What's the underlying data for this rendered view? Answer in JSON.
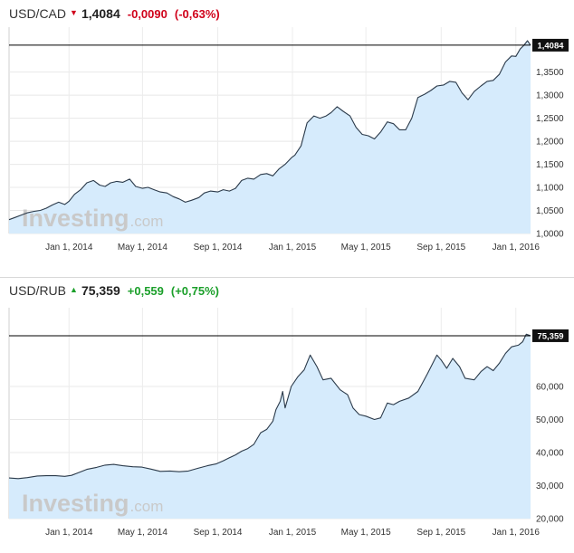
{
  "chart_data": [
    {
      "type": "area",
      "symbol": "USD/CAD",
      "last": "1,4084",
      "change": "-0,0090",
      "change_pct": "(-0,63%)",
      "direction": "down",
      "last_value": 1.4084,
      "last_label": "1,4084",
      "watermark": "Investing",
      "watermark_suffix": ".com",
      "ylim": [
        1.0,
        1.42
      ],
      "y_ticks": [
        {
          "value": 1.0,
          "label": "1,0000"
        },
        {
          "value": 1.05,
          "label": "1,0500"
        },
        {
          "value": 1.1,
          "label": "1,1000"
        },
        {
          "value": 1.15,
          "label": "1,1500"
        },
        {
          "value": 1.2,
          "label": "1,2000"
        },
        {
          "value": 1.25,
          "label": "1,2500"
        },
        {
          "value": 1.3,
          "label": "1,3000"
        },
        {
          "value": 1.35,
          "label": "1,3500"
        }
      ],
      "xlim": [
        "2013-09-25",
        "2016-01-25"
      ],
      "x_ticks": [
        {
          "date": "2014-01-01",
          "label": "Jan 1, 2014"
        },
        {
          "date": "2014-05-01",
          "label": "May 1, 2014"
        },
        {
          "date": "2014-09-01",
          "label": "Sep 1, 2014"
        },
        {
          "date": "2015-01-01",
          "label": "Jan 1, 2015"
        },
        {
          "date": "2015-05-01",
          "label": "May 1, 2015"
        },
        {
          "date": "2015-09-01",
          "label": "Sep 1, 2015"
        },
        {
          "date": "2016-01-01",
          "label": "Jan 1, 2016"
        }
      ],
      "series": [
        {
          "values": [
            [
              "2013-09-25",
              1.03
            ],
            [
              "2013-10-05",
              1.035
            ],
            [
              "2013-10-15",
              1.04
            ],
            [
              "2013-10-25",
              1.045
            ],
            [
              "2013-11-05",
              1.048
            ],
            [
              "2013-11-15",
              1.05
            ],
            [
              "2013-11-25",
              1.055
            ],
            [
              "2013-12-05",
              1.062
            ],
            [
              "2013-12-15",
              1.068
            ],
            [
              "2013-12-25",
              1.063
            ],
            [
              "2014-01-01",
              1.07
            ],
            [
              "2014-01-10",
              1.085
            ],
            [
              "2014-01-20",
              1.095
            ],
            [
              "2014-01-30",
              1.11
            ],
            [
              "2014-02-10",
              1.115
            ],
            [
              "2014-02-20",
              1.105
            ],
            [
              "2014-03-01",
              1.102
            ],
            [
              "2014-03-10",
              1.11
            ],
            [
              "2014-03-20",
              1.113
            ],
            [
              "2014-03-30",
              1.111
            ],
            [
              "2014-04-10",
              1.118
            ],
            [
              "2014-04-20",
              1.102
            ],
            [
              "2014-05-01",
              1.098
            ],
            [
              "2014-05-10",
              1.1
            ],
            [
              "2014-05-20",
              1.095
            ],
            [
              "2014-05-30",
              1.09
            ],
            [
              "2014-06-10",
              1.088
            ],
            [
              "2014-06-20",
              1.08
            ],
            [
              "2014-06-30",
              1.075
            ],
            [
              "2014-07-10",
              1.068
            ],
            [
              "2014-07-20",
              1.072
            ],
            [
              "2014-08-01",
              1.078
            ],
            [
              "2014-08-10",
              1.088
            ],
            [
              "2014-08-20",
              1.092
            ],
            [
              "2014-09-01",
              1.09
            ],
            [
              "2014-09-10",
              1.095
            ],
            [
              "2014-09-20",
              1.092
            ],
            [
              "2014-09-30",
              1.098
            ],
            [
              "2014-10-10",
              1.115
            ],
            [
              "2014-10-20",
              1.12
            ],
            [
              "2014-10-30",
              1.118
            ],
            [
              "2014-11-10",
              1.128
            ],
            [
              "2014-11-20",
              1.13
            ],
            [
              "2014-11-30",
              1.125
            ],
            [
              "2014-12-10",
              1.14
            ],
            [
              "2014-12-20",
              1.15
            ],
            [
              "2014-12-31",
              1.165
            ],
            [
              "2015-01-05",
              1.17
            ],
            [
              "2015-01-15",
              1.19
            ],
            [
              "2015-01-25",
              1.24
            ],
            [
              "2015-02-05",
              1.255
            ],
            [
              "2015-02-15",
              1.25
            ],
            [
              "2015-02-25",
              1.255
            ],
            [
              "2015-03-05",
              1.262
            ],
            [
              "2015-03-15",
              1.275
            ],
            [
              "2015-03-25",
              1.265
            ],
            [
              "2015-04-05",
              1.255
            ],
            [
              "2015-04-15",
              1.23
            ],
            [
              "2015-04-25",
              1.215
            ],
            [
              "2015-05-05",
              1.212
            ],
            [
              "2015-05-15",
              1.205
            ],
            [
              "2015-05-25",
              1.22
            ],
            [
              "2015-06-05",
              1.242
            ],
            [
              "2015-06-15",
              1.238
            ],
            [
              "2015-06-25",
              1.225
            ],
            [
              "2015-07-05",
              1.225
            ],
            [
              "2015-07-15",
              1.25
            ],
            [
              "2015-07-25",
              1.295
            ],
            [
              "2015-08-05",
              1.302
            ],
            [
              "2015-08-15",
              1.31
            ],
            [
              "2015-08-25",
              1.32
            ],
            [
              "2015-09-05",
              1.322
            ],
            [
              "2015-09-15",
              1.33
            ],
            [
              "2015-09-25",
              1.328
            ],
            [
              "2015-10-05",
              1.305
            ],
            [
              "2015-10-15",
              1.29
            ],
            [
              "2015-10-25",
              1.308
            ],
            [
              "2015-11-05",
              1.32
            ],
            [
              "2015-11-15",
              1.33
            ],
            [
              "2015-11-25",
              1.332
            ],
            [
              "2015-12-05",
              1.345
            ],
            [
              "2015-12-15",
              1.372
            ],
            [
              "2015-12-25",
              1.385
            ],
            [
              "2016-01-01",
              1.384
            ],
            [
              "2016-01-08",
              1.4
            ],
            [
              "2016-01-14",
              1.408
            ],
            [
              "2016-01-20",
              1.418
            ],
            [
              "2016-01-25",
              1.4084
            ]
          ]
        }
      ],
      "grid": true
    },
    {
      "type": "area",
      "symbol": "USD/RUB",
      "last": "75,359",
      "change": "+0,559",
      "change_pct": "(+0,75%)",
      "direction": "up",
      "last_value": 75.359,
      "last_label": "75,359",
      "watermark": "Investing",
      "watermark_suffix": ".com",
      "ylim": [
        20,
        80
      ],
      "y_ticks": [
        {
          "value": 20,
          "label": "20,000"
        },
        {
          "value": 30,
          "label": "30,000"
        },
        {
          "value": 40,
          "label": "40,000"
        },
        {
          "value": 50,
          "label": "50,000"
        },
        {
          "value": 60,
          "label": "60,000"
        }
      ],
      "xlim": [
        "2013-09-25",
        "2016-01-25"
      ],
      "x_ticks": [
        {
          "date": "2014-01-01",
          "label": "Jan 1, 2014"
        },
        {
          "date": "2014-05-01",
          "label": "May 1, 2014"
        },
        {
          "date": "2014-09-01",
          "label": "Sep 1, 2014"
        },
        {
          "date": "2015-01-01",
          "label": "Jan 1, 2015"
        },
        {
          "date": "2015-05-01",
          "label": "May 1, 2015"
        },
        {
          "date": "2015-09-01",
          "label": "Sep 1, 2015"
        },
        {
          "date": "2016-01-01",
          "label": "Jan 1, 2016"
        }
      ],
      "series": [
        {
          "values": [
            [
              "2013-09-25",
              32.3
            ],
            [
              "2013-10-10",
              32.1
            ],
            [
              "2013-10-25",
              32.4
            ],
            [
              "2013-11-10",
              32.9
            ],
            [
              "2013-11-25",
              33.0
            ],
            [
              "2013-12-10",
              33.0
            ],
            [
              "2013-12-25",
              32.8
            ],
            [
              "2014-01-05",
              33.1
            ],
            [
              "2014-01-15",
              33.8
            ],
            [
              "2014-01-30",
              34.9
            ],
            [
              "2014-02-15",
              35.5
            ],
            [
              "2014-03-01",
              36.2
            ],
            [
              "2014-03-15",
              36.4
            ],
            [
              "2014-03-30",
              36.0
            ],
            [
              "2014-04-15",
              35.7
            ],
            [
              "2014-04-30",
              35.6
            ],
            [
              "2014-05-15",
              35.0
            ],
            [
              "2014-05-30",
              34.3
            ],
            [
              "2014-06-15",
              34.4
            ],
            [
              "2014-06-30",
              34.2
            ],
            [
              "2014-07-15",
              34.4
            ],
            [
              "2014-07-30",
              35.2
            ],
            [
              "2014-08-15",
              36.0
            ],
            [
              "2014-08-30",
              36.6
            ],
            [
              "2014-09-10",
              37.5
            ],
            [
              "2014-09-20",
              38.4
            ],
            [
              "2014-09-30",
              39.3
            ],
            [
              "2014-10-10",
              40.4
            ],
            [
              "2014-10-20",
              41.2
            ],
            [
              "2014-10-30",
              42.5
            ],
            [
              "2014-11-10",
              46.0
            ],
            [
              "2014-11-20",
              47.0
            ],
            [
              "2014-11-30",
              49.5
            ],
            [
              "2014-12-05",
              53.0
            ],
            [
              "2014-12-12",
              55.5
            ],
            [
              "2014-12-16",
              58.5
            ],
            [
              "2014-12-20",
              53.5
            ],
            [
              "2014-12-30",
              60.0
            ],
            [
              "2015-01-10",
              63.0
            ],
            [
              "2015-01-20",
              65.0
            ],
            [
              "2015-01-30",
              69.5
            ],
            [
              "2015-02-10",
              66.0
            ],
            [
              "2015-02-20",
              62.0
            ],
            [
              "2015-03-05",
              62.5
            ],
            [
              "2015-03-20",
              59.0
            ],
            [
              "2015-04-01",
              57.5
            ],
            [
              "2015-04-10",
              53.5
            ],
            [
              "2015-04-20",
              51.5
            ],
            [
              "2015-05-01",
              51.0
            ],
            [
              "2015-05-15",
              50.0
            ],
            [
              "2015-05-25",
              50.5
            ],
            [
              "2015-06-05",
              55.0
            ],
            [
              "2015-06-15",
              54.5
            ],
            [
              "2015-06-25",
              55.5
            ],
            [
              "2015-07-10",
              56.5
            ],
            [
              "2015-07-25",
              58.5
            ],
            [
              "2015-08-10",
              64.0
            ],
            [
              "2015-08-25",
              69.5
            ],
            [
              "2015-09-01",
              68.0
            ],
            [
              "2015-09-10",
              65.5
            ],
            [
              "2015-09-20",
              68.5
            ],
            [
              "2015-10-01",
              66.0
            ],
            [
              "2015-10-10",
              62.5
            ],
            [
              "2015-10-25",
              62.0
            ],
            [
              "2015-11-05",
              64.5
            ],
            [
              "2015-11-15",
              66.0
            ],
            [
              "2015-11-25",
              64.8
            ],
            [
              "2015-12-05",
              67.0
            ],
            [
              "2015-12-15",
              70.0
            ],
            [
              "2015-12-25",
              72.0
            ],
            [
              "2016-01-05",
              72.5
            ],
            [
              "2016-01-12",
              73.5
            ],
            [
              "2016-01-18",
              75.8
            ],
            [
              "2016-01-25",
              75.359
            ]
          ]
        }
      ],
      "grid": true
    }
  ]
}
